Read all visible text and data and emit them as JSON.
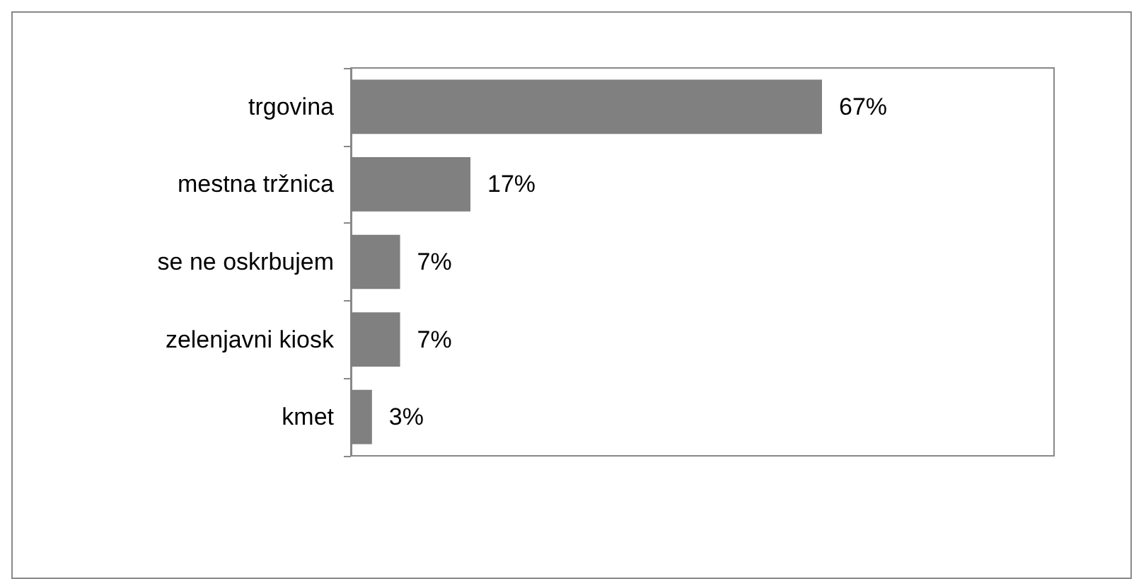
{
  "chart_data": {
    "type": "bar",
    "orientation": "horizontal",
    "categories": [
      "trgovina",
      "mestna tržnica",
      "se ne oskrbujem",
      "zelenjavni kiosk",
      "kmet"
    ],
    "values": [
      67,
      17,
      7,
      7,
      3
    ],
    "value_labels": [
      "67%",
      "17%",
      "7%",
      "7%",
      "3%"
    ],
    "color": "#808080",
    "xlim": [
      0,
      100
    ],
    "tick_labels": "y"
  }
}
